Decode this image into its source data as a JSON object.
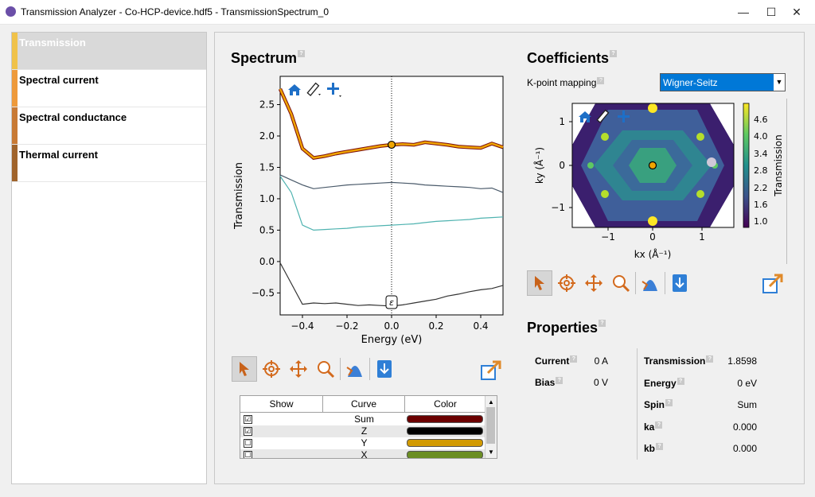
{
  "window": {
    "title": "Transmission Analyzer - Co-HCP-device.hdf5 - TransmissionSpectrum_0",
    "minimize": "—",
    "maximize": "☐",
    "close": "✕"
  },
  "sidebar": {
    "items": [
      {
        "label": "Transmission",
        "selected": true,
        "color": "#f0c24a"
      },
      {
        "label": "Spectral current",
        "selected": false,
        "color": "#ee9a3b"
      },
      {
        "label": "Spectral conductance",
        "selected": false,
        "color": "#c87a35"
      },
      {
        "label": "Thermal current",
        "selected": false,
        "color": "#a0642c"
      }
    ]
  },
  "spectrum": {
    "title": "Spectrum",
    "help": "?",
    "marker_label": "ε",
    "chart_data": {
      "type": "line",
      "xlabel": "Energy (eV)",
      "ylabel": "Transmission",
      "xlim": [
        -0.5,
        0.5
      ],
      "ylim": [
        -0.85,
        2.95
      ],
      "xticks": [
        "−0.4",
        "−0.2",
        "0.0",
        "0.2",
        "0.4"
      ],
      "yticks": [
        "−0.5",
        "0.0",
        "0.5",
        "1.0",
        "1.5",
        "2.0",
        "2.5"
      ],
      "marker": {
        "x": 0.0,
        "y": 1.86
      },
      "series": [
        {
          "name": "Sum",
          "color": "#f0a500",
          "outline": "#7a0e0e",
          "x": [
            -0.5,
            -0.45,
            -0.4,
            -0.35,
            -0.3,
            -0.25,
            -0.2,
            -0.15,
            -0.1,
            -0.05,
            0.0,
            0.05,
            0.1,
            0.15,
            0.2,
            0.25,
            0.3,
            0.35,
            0.4,
            0.45,
            0.5
          ],
          "y": [
            2.75,
            2.35,
            1.8,
            1.65,
            1.68,
            1.72,
            1.75,
            1.78,
            1.81,
            1.84,
            1.86,
            1.87,
            1.86,
            1.9,
            1.88,
            1.86,
            1.83,
            1.82,
            1.81,
            1.88,
            1.82
          ]
        },
        {
          "name": "Z",
          "color": "#4a5a6a",
          "x": [
            -0.5,
            -0.45,
            -0.4,
            -0.35,
            -0.3,
            -0.25,
            -0.2,
            -0.15,
            -0.1,
            -0.05,
            0.0,
            0.05,
            0.1,
            0.15,
            0.2,
            0.25,
            0.3,
            0.35,
            0.4,
            0.45,
            0.5
          ],
          "y": [
            1.38,
            1.3,
            1.22,
            1.16,
            1.18,
            1.2,
            1.22,
            1.23,
            1.24,
            1.25,
            1.26,
            1.25,
            1.24,
            1.22,
            1.21,
            1.2,
            1.19,
            1.18,
            1.16,
            1.17,
            1.1
          ]
        },
        {
          "name": "Y",
          "color": "#4fb3b0",
          "x": [
            -0.5,
            -0.45,
            -0.4,
            -0.35,
            -0.3,
            -0.25,
            -0.2,
            -0.15,
            -0.1,
            -0.05,
            0.0,
            0.05,
            0.1,
            0.15,
            0.2,
            0.25,
            0.3,
            0.35,
            0.4,
            0.45,
            0.5
          ],
          "y": [
            1.36,
            1.1,
            0.58,
            0.5,
            0.51,
            0.52,
            0.53,
            0.55,
            0.56,
            0.57,
            0.58,
            0.59,
            0.6,
            0.62,
            0.64,
            0.65,
            0.66,
            0.67,
            0.69,
            0.7,
            0.71
          ]
        },
        {
          "name": "X",
          "color": "#333333",
          "x": [
            -0.5,
            -0.45,
            -0.4,
            -0.35,
            -0.3,
            -0.25,
            -0.2,
            -0.15,
            -0.1,
            -0.05,
            0.0,
            0.05,
            0.1,
            0.15,
            0.2,
            0.25,
            0.3,
            0.35,
            0.4,
            0.45,
            0.5
          ],
          "y": [
            -0.02,
            -0.35,
            -0.68,
            -0.66,
            -0.67,
            -0.66,
            -0.68,
            -0.7,
            -0.69,
            -0.7,
            -0.71,
            -0.69,
            -0.66,
            -0.63,
            -0.6,
            -0.55,
            -0.52,
            -0.48,
            -0.45,
            -0.43,
            -0.38
          ]
        }
      ]
    },
    "table": {
      "headers": [
        "Show",
        "Curve",
        "Color"
      ],
      "rows": [
        {
          "checked": "☑",
          "curve": "Sum",
          "color": "#6b0000"
        },
        {
          "checked": "☑",
          "curve": "Z",
          "color": "#000000"
        },
        {
          "checked": "☐",
          "curve": "Y",
          "color": "#d29a00"
        },
        {
          "checked": "☐",
          "curve": "X",
          "color": "#6b8e23"
        }
      ]
    }
  },
  "coefficients": {
    "title": "Coefficients",
    "help": "?",
    "kpoint_label": "K-point mapping",
    "kpoint_value": "Wigner-Seitz",
    "chart_data": {
      "type": "heatmap",
      "xlabel": "kx (Å⁻¹)",
      "ylabel": "ky (Å⁻¹)",
      "xticks": [
        "−1",
        "0",
        "1"
      ],
      "yticks": [
        "1",
        "0",
        "−1"
      ],
      "colorbar_label": "Transmission",
      "colorbar_ticks": [
        "4.6",
        "4.0",
        "3.4",
        "2.8",
        "2.2",
        "1.6",
        "1.0"
      ],
      "marker": {
        "x": 0.0,
        "y": 0.0
      }
    }
  },
  "properties": {
    "title": "Properties",
    "help": "?",
    "left": [
      {
        "label": "Current",
        "value": "0 A"
      },
      {
        "label": "Bias",
        "value": "0 V"
      }
    ],
    "right": [
      {
        "label": "Transmission",
        "value": "1.8598"
      },
      {
        "label": "Energy",
        "value": "0 eV"
      },
      {
        "label": "Spin",
        "value": "Sum"
      },
      {
        "label": "ka",
        "value": "0.000"
      },
      {
        "label": "kb",
        "value": "0.000"
      }
    ]
  }
}
